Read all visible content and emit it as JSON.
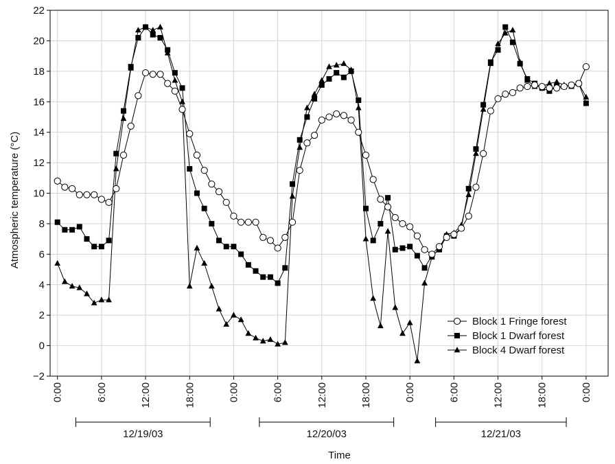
{
  "chart_data": {
    "type": "line",
    "xlabel": "Time",
    "ylabel": "Atmospheric temperature (°C)",
    "ylim": [
      -2,
      22
    ],
    "y_ticks": [
      -2,
      0,
      2,
      4,
      6,
      8,
      10,
      12,
      14,
      16,
      18,
      20,
      22
    ],
    "x_unit": "hours from 12/19/03 0:00",
    "xlim": [
      -1,
      75
    ],
    "x_ticks": [
      {
        "x": 0,
        "label": "0:00"
      },
      {
        "x": 6,
        "label": "6:00"
      },
      {
        "x": 12,
        "label": "12:00"
      },
      {
        "x": 18,
        "label": "18:00"
      },
      {
        "x": 24,
        "label": "0:00"
      },
      {
        "x": 30,
        "label": "6:00"
      },
      {
        "x": 36,
        "label": "12:00"
      },
      {
        "x": 42,
        "label": "18:00"
      },
      {
        "x": 48,
        "label": "0:00"
      },
      {
        "x": 54,
        "label": "6:00"
      },
      {
        "x": 60,
        "label": "12:00"
      },
      {
        "x": 66,
        "label": "18:00"
      },
      {
        "x": 72,
        "label": "0:00"
      }
    ],
    "date_ranges": [
      {
        "label": "12/19/03",
        "start": 2.5,
        "end": 20.8
      },
      {
        "label": "12/20/03",
        "start": 27.5,
        "end": 45.8
      },
      {
        "label": "12/21/03",
        "start": 51.5,
        "end": 69.3
      }
    ],
    "grid": true,
    "legend_position": "bottom-right",
    "x": [
      0,
      1,
      2,
      3,
      4,
      5,
      6,
      7,
      8,
      9,
      10,
      11,
      12,
      13,
      14,
      15,
      16,
      17,
      18,
      19,
      20,
      21,
      22,
      23,
      24,
      25,
      26,
      27,
      28,
      29,
      30,
      31,
      32,
      33,
      34,
      35,
      36,
      37,
      38,
      39,
      40,
      41,
      42,
      43,
      44,
      45,
      46,
      47,
      48,
      49,
      50,
      51,
      52,
      53,
      54,
      55,
      56,
      57,
      58,
      59,
      60,
      61,
      62,
      63,
      64,
      65,
      66,
      67,
      68,
      69,
      70,
      71,
      72
    ],
    "series": [
      {
        "name": "Block 1 Fringe  forest",
        "marker": "circle-open",
        "values": [
          10.8,
          10.4,
          10.3,
          9.9,
          9.9,
          9.9,
          9.6,
          9.4,
          10.3,
          12.5,
          14.4,
          16.4,
          17.9,
          17.8,
          17.8,
          17.2,
          16.7,
          15.5,
          13.9,
          12.5,
          11.5,
          10.6,
          10.1,
          9.4,
          8.5,
          8.1,
          8.1,
          8.1,
          7.1,
          6.9,
          6.4,
          7.1,
          8.1,
          11.5,
          13.3,
          13.8,
          14.8,
          15.0,
          15.2,
          15.1,
          14.8,
          14.0,
          12.5,
          10.9,
          9.6,
          9.1,
          8.4,
          8.0,
          7.8,
          7.2,
          6.3,
          6.0,
          6.5,
          7.1,
          7.3,
          7.7,
          8.5,
          10.4,
          12.6,
          15.4,
          16.2,
          16.5,
          16.6,
          16.9,
          17.0,
          17.1,
          17.0,
          16.9,
          16.9,
          17.0,
          17.1,
          17.2,
          18.3
        ]
      },
      {
        "name": "Block 1 Dwarf  forest",
        "marker": "square-filled",
        "values": [
          8.1,
          7.6,
          7.6,
          7.8,
          7.0,
          6.5,
          6.5,
          6.9,
          12.6,
          15.4,
          18.3,
          20.2,
          20.9,
          20.4,
          20.2,
          19.4,
          17.9,
          16.9,
          11.6,
          10.0,
          9.0,
          8.0,
          6.9,
          6.5,
          6.5,
          6.0,
          5.3,
          4.9,
          4.5,
          4.5,
          4.1,
          5.1,
          10.6,
          13.5,
          15.0,
          16.2,
          17.1,
          17.5,
          17.9,
          17.6,
          18.0,
          16.1,
          9.0,
          6.9,
          8.0,
          9.7,
          6.3,
          6.4,
          6.5,
          5.9,
          5.1,
          5.9,
          6.3,
          7.2,
          7.2,
          7.7,
          10.3,
          12.9,
          15.8,
          18.6,
          19.4,
          20.9,
          19.9,
          18.5,
          17.5,
          17.2,
          16.9,
          16.7,
          17.0,
          17.0,
          17.1,
          17.2,
          15.9
        ]
      },
      {
        "name": "Block 4 Dwarf  forest",
        "marker": "triangle-filled",
        "values": [
          5.4,
          4.2,
          3.9,
          3.8,
          3.4,
          2.8,
          3.0,
          3.0,
          11.6,
          14.9,
          18.2,
          20.7,
          20.9,
          20.7,
          20.9,
          19.2,
          17.4,
          16.0,
          3.9,
          6.4,
          5.4,
          3.9,
          2.4,
          1.4,
          2.0,
          1.7,
          0.8,
          0.5,
          0.3,
          0.4,
          0.1,
          0.2,
          9.8,
          13.0,
          15.6,
          16.5,
          17.4,
          18.3,
          18.4,
          18.5,
          18.1,
          15.6,
          7.0,
          3.1,
          1.3,
          7.5,
          2.5,
          0.8,
          1.5,
          -1.0,
          4.1,
          5.8,
          6.4,
          7.3,
          7.4,
          7.9,
          9.9,
          12.6,
          15.5,
          18.5,
          19.8,
          20.5,
          20.7,
          18.6,
          17.4,
          17.0,
          17.0,
          17.2,
          17.3,
          17.1,
          17.0,
          17.2,
          16.3
        ]
      }
    ]
  }
}
